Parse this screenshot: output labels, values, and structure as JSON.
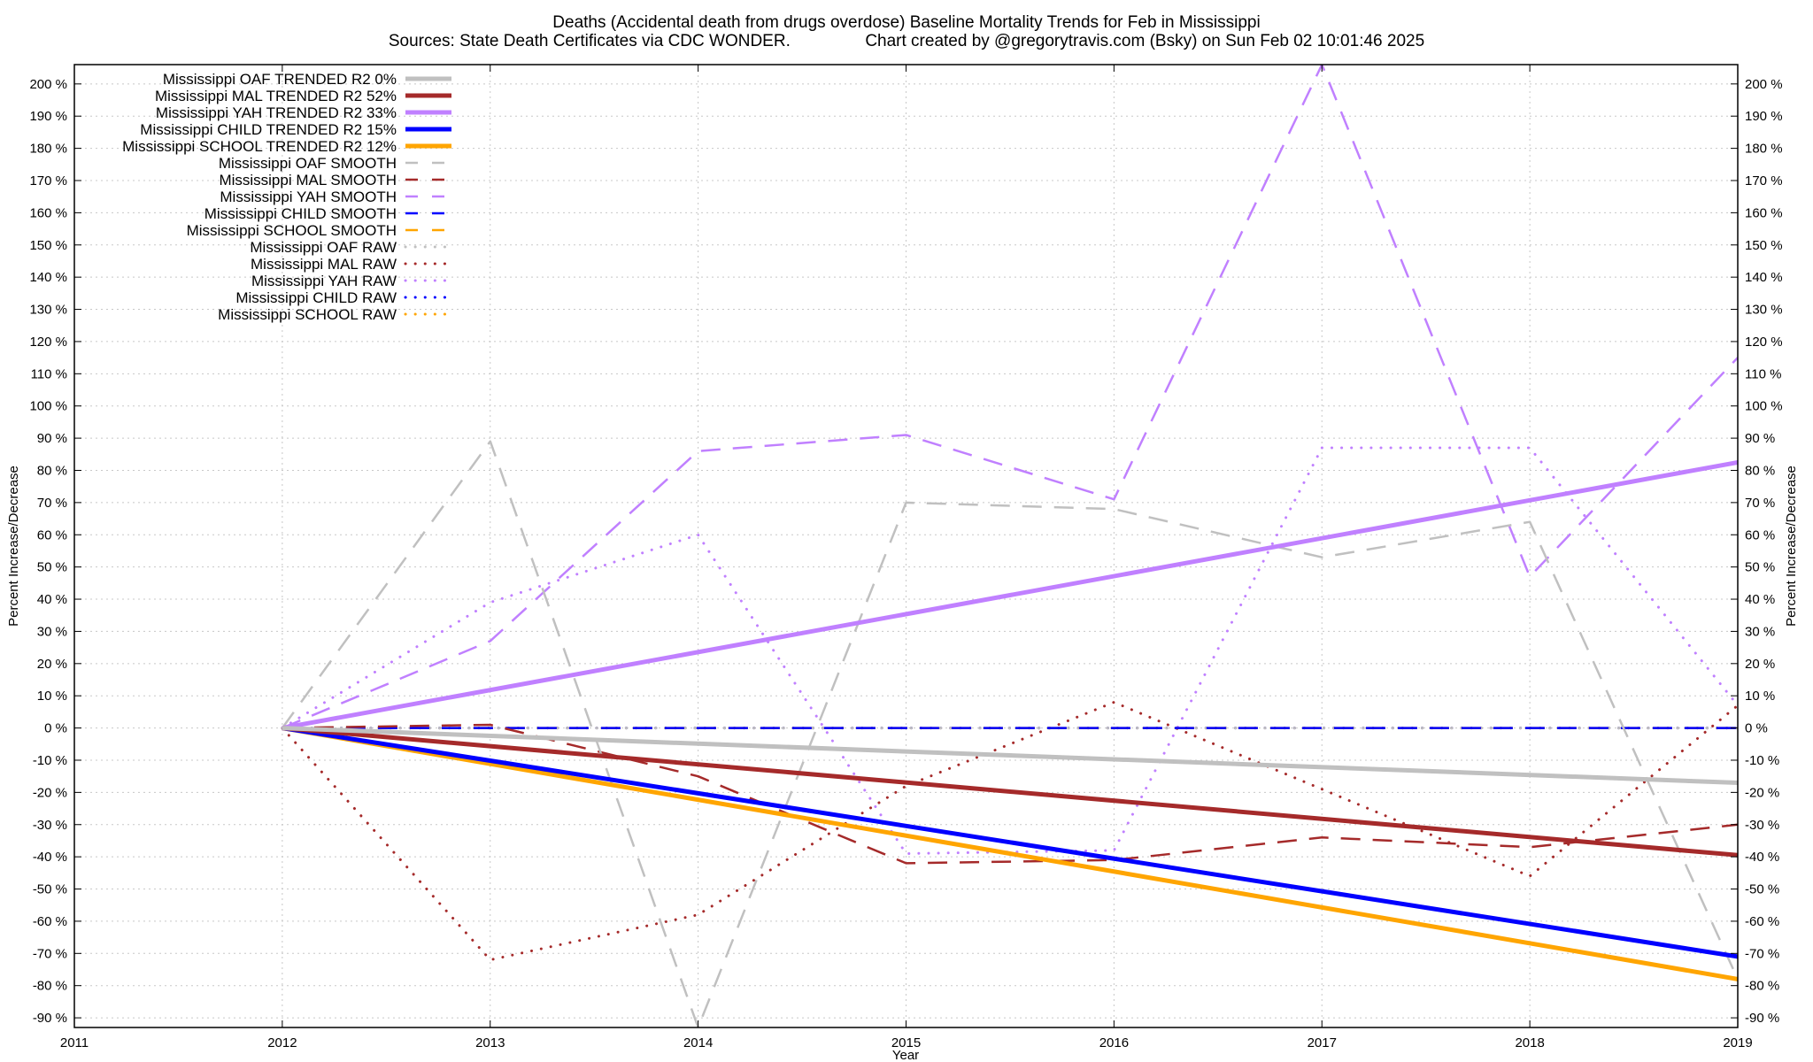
{
  "chart_data": {
    "type": "line",
    "title": "Deaths (Accidental death from drugs overdose)  Baseline Mortality Trends for Feb in Mississippi",
    "subtitle": "Sources: State Death Certificates via CDC WONDER.                Chart created by @gregorytravis.com (Bsky) on Sun Feb 02 10:01:46 2025",
    "xlabel": "Year",
    "ylabel": "Percent Increase/Decrease",
    "y2label": "Percent Increase/Decrease",
    "xlim": [
      2011,
      2019
    ],
    "ylim": [
      -93,
      206
    ],
    "x_ticks": [
      "2011",
      "2012",
      "2013",
      "2014",
      "2015",
      "2016",
      "2017",
      "2018",
      "2019"
    ],
    "y_ticks": [
      "200 %",
      "190 %",
      "180 %",
      "170 %",
      "160 %",
      "150 %",
      "140 %",
      "130 %",
      "120 %",
      "110 %",
      "100 %",
      "90 %",
      "80 %",
      "70 %",
      "60 %",
      "50 %",
      "40 %",
      "30 %",
      "20 %",
      "10 %",
      "0 %",
      "-10 %",
      "-20 %",
      "-30 %",
      "-40 %",
      "-50 %",
      "-60 %",
      "-70 %",
      "-80 %",
      "-90 %"
    ],
    "grid": true,
    "legend_position": "top-left",
    "series": [
      {
        "name": "Mississippi OAF TRENDED R2   0%",
        "color": "#c0c0c0",
        "style": "solid",
        "x": [
          2012,
          2019
        ],
        "y": [
          0,
          -17
        ]
      },
      {
        "name": "Mississippi MAL TRENDED R2  52%",
        "color": "#a52a2a",
        "style": "solid",
        "x": [
          2012,
          2019
        ],
        "y": [
          0,
          -39.5
        ]
      },
      {
        "name": "Mississippi YAH TRENDED R2  33%",
        "color": "#c080ff",
        "style": "solid",
        "x": [
          2012,
          2019
        ],
        "y": [
          0,
          82.5
        ]
      },
      {
        "name": "Mississippi CHILD TRENDED R2  15%",
        "color": "#0000ff",
        "style": "solid",
        "x": [
          2012,
          2019
        ],
        "y": [
          0,
          -71
        ]
      },
      {
        "name": "Mississippi SCHOOL TRENDED R2  12%",
        "color": "#ffa500",
        "style": "solid",
        "x": [
          2012,
          2019
        ],
        "y": [
          0,
          -78
        ]
      },
      {
        "name": "Mississippi OAF SMOOTH",
        "color": "#c0c0c0",
        "style": "dashed",
        "x": [
          2012,
          2013,
          2014,
          2015,
          2016,
          2017,
          2018,
          2019
        ],
        "y": [
          0,
          89,
          -93,
          70,
          68,
          53,
          64,
          -78
        ]
      },
      {
        "name": "Mississippi MAL SMOOTH",
        "color": "#a52a2a",
        "style": "dashed",
        "x": [
          2012,
          2013,
          2014,
          2015,
          2016,
          2017,
          2018,
          2019
        ],
        "y": [
          0,
          1,
          -15,
          -42,
          -41,
          -34,
          -37,
          -30
        ]
      },
      {
        "name": "Mississippi YAH SMOOTH",
        "color": "#c080ff",
        "style": "dashed",
        "x": [
          2012,
          2013,
          2014,
          2015,
          2016,
          2017,
          2018,
          2019
        ],
        "y": [
          0,
          27,
          86,
          91,
          71,
          206,
          47,
          115
        ]
      },
      {
        "name": "Mississippi CHILD SMOOTH",
        "color": "#0000ff",
        "style": "dashed",
        "x": [
          2012,
          2019
        ],
        "y": [
          0,
          0
        ]
      },
      {
        "name": "Mississippi SCHOOL SMOOTH",
        "color": "#ffa500",
        "style": "dashed",
        "x": [
          2012,
          2019
        ],
        "y": [
          0,
          0
        ]
      },
      {
        "name": "Mississippi OAF RAW",
        "color": "#c0c0c0",
        "style": "dotted",
        "x": [
          2012,
          2019
        ],
        "y": [
          0,
          0
        ]
      },
      {
        "name": "Mississippi MAL RAW",
        "color": "#a52a2a",
        "style": "dotted",
        "x": [
          2012,
          2013,
          2014,
          2015,
          2016,
          2017,
          2018,
          2019
        ],
        "y": [
          0,
          -72,
          -58,
          -18,
          8,
          -19,
          -46,
          7
        ]
      },
      {
        "name": "Mississippi YAH RAW",
        "color": "#c080ff",
        "style": "dotted",
        "x": [
          2012,
          2013,
          2014,
          2015,
          2016,
          2017,
          2018,
          2019
        ],
        "y": [
          0,
          39,
          60,
          -39,
          -38,
          87,
          87,
          7
        ]
      },
      {
        "name": "Mississippi CHILD RAW",
        "color": "#0000ff",
        "style": "dotted",
        "x": [
          2012,
          2019
        ],
        "y": [
          0,
          0
        ]
      },
      {
        "name": "Mississippi SCHOOL RAW",
        "color": "#ffa500",
        "style": "dotted",
        "x": [
          2012,
          2019
        ],
        "y": [
          0,
          0
        ]
      }
    ]
  }
}
